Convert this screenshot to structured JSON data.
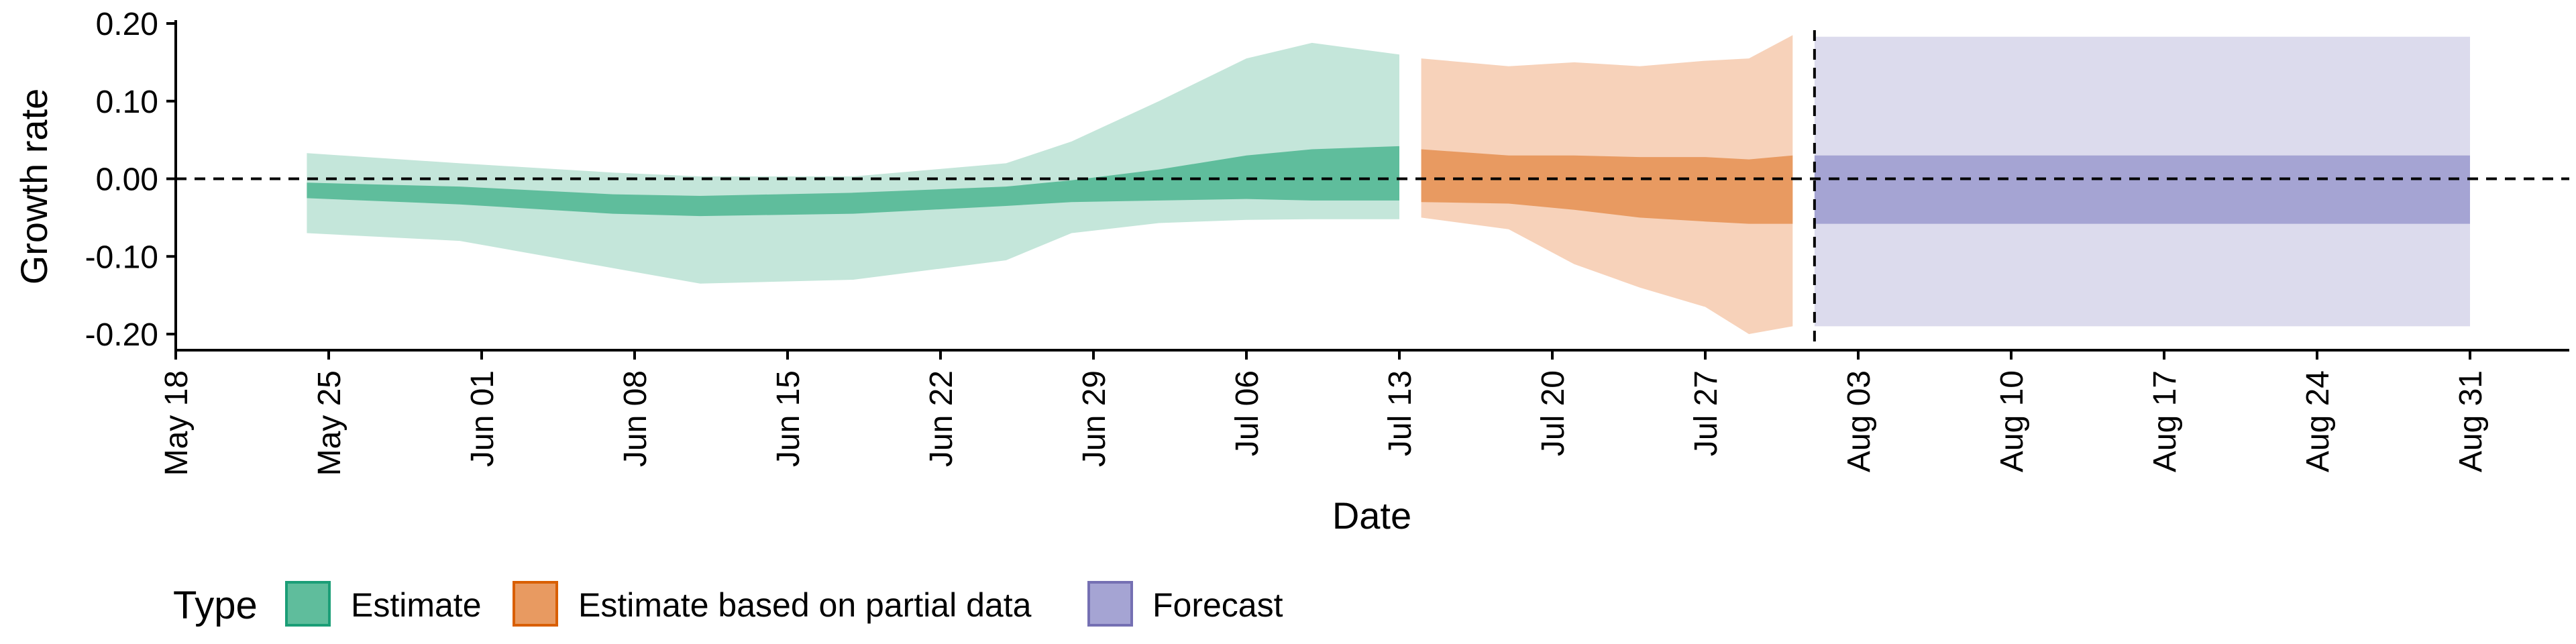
{
  "chart_data": {
    "type": "area",
    "xlabel": "Date",
    "ylabel": "Growth rate",
    "ylim": [
      -0.2,
      0.2
    ],
    "y_ticks": [
      0.2,
      0.1,
      0.0,
      -0.1,
      -0.2
    ],
    "y_tick_labels": [
      "0.20",
      "0.10",
      "0.00",
      "-0.10",
      "-0.20"
    ],
    "x_ticks": [
      "2020-05-18",
      "2020-05-25",
      "2020-06-01",
      "2020-06-08",
      "2020-06-15",
      "2020-06-22",
      "2020-06-29",
      "2020-07-06",
      "2020-07-13",
      "2020-07-20",
      "2020-07-27",
      "2020-08-03",
      "2020-08-10",
      "2020-08-17",
      "2020-08-24",
      "2020-08-31"
    ],
    "x_tick_labels": [
      "May 18",
      "May 25",
      "Jun 01",
      "Jun 08",
      "Jun 15",
      "Jun 22",
      "Jun 29",
      "Jul 06",
      "Jul 13",
      "Jul 20",
      "Jul 27",
      "Aug 03",
      "Aug 10",
      "Aug 17",
      "Aug 24",
      "Aug 31"
    ],
    "xlim": [
      "2020-05-18",
      "2020-09-01"
    ],
    "reference_lines": {
      "horizontal_y": 0.0,
      "vertical_date": "2020-08-01",
      "style": "dashed"
    },
    "legend": {
      "title": "Type",
      "position": "bottom-left",
      "items": [
        {
          "label": "Estimate",
          "color": "#66c2a5"
        },
        {
          "label": "Estimate based on partial data",
          "color": "#fc8d62"
        },
        {
          "label": "Forecast",
          "color": "#8da0cb"
        }
      ]
    },
    "series": [
      {
        "legend_label": "Estimate",
        "inner_color": "#5fbd9c",
        "outer_color": "#c4e6da",
        "points": [
          {
            "date": "2020-05-24",
            "lo90": -0.07,
            "lo50": -0.025,
            "hi50": -0.005,
            "hi90": 0.033
          },
          {
            "date": "2020-05-31",
            "lo90": -0.08,
            "lo50": -0.033,
            "hi50": -0.01,
            "hi90": 0.02
          },
          {
            "date": "2020-06-07",
            "lo90": -0.115,
            "lo50": -0.045,
            "hi50": -0.02,
            "hi90": 0.008
          },
          {
            "date": "2020-06-11",
            "lo90": -0.135,
            "lo50": -0.048,
            "hi50": -0.022,
            "hi90": 0.003
          },
          {
            "date": "2020-06-18",
            "lo90": -0.13,
            "lo50": -0.045,
            "hi50": -0.018,
            "hi90": 0.003
          },
          {
            "date": "2020-06-25",
            "lo90": -0.105,
            "lo50": -0.035,
            "hi50": -0.01,
            "hi90": 0.02
          },
          {
            "date": "2020-06-28",
            "lo90": -0.07,
            "lo50": -0.03,
            "hi50": -0.002,
            "hi90": 0.048
          },
          {
            "date": "2020-07-02",
            "lo90": -0.057,
            "lo50": -0.028,
            "hi50": 0.012,
            "hi90": 0.1
          },
          {
            "date": "2020-07-06",
            "lo90": -0.053,
            "lo50": -0.026,
            "hi50": 0.03,
            "hi90": 0.155
          },
          {
            "date": "2020-07-09",
            "lo90": -0.052,
            "lo50": -0.028,
            "hi50": 0.038,
            "hi90": 0.175
          },
          {
            "date": "2020-07-13",
            "lo90": -0.052,
            "lo50": -0.028,
            "hi50": 0.042,
            "hi90": 0.16
          }
        ]
      },
      {
        "legend_label": "Estimate based on partial data",
        "inner_color": "#e89a61",
        "outer_color": "#f7d2ba",
        "points": [
          {
            "date": "2020-07-14",
            "lo90": -0.05,
            "lo50": -0.03,
            "hi50": 0.038,
            "hi90": 0.155
          },
          {
            "date": "2020-07-18",
            "lo90": -0.065,
            "lo50": -0.032,
            "hi50": 0.03,
            "hi90": 0.145
          },
          {
            "date": "2020-07-21",
            "lo90": -0.11,
            "lo50": -0.04,
            "hi50": 0.03,
            "hi90": 0.15
          },
          {
            "date": "2020-07-24",
            "lo90": -0.14,
            "lo50": -0.05,
            "hi50": 0.028,
            "hi90": 0.145
          },
          {
            "date": "2020-07-27",
            "lo90": -0.165,
            "lo50": -0.055,
            "hi50": 0.028,
            "hi90": 0.152
          },
          {
            "date": "2020-07-29",
            "lo90": -0.2,
            "lo50": -0.058,
            "hi50": 0.025,
            "hi90": 0.155
          },
          {
            "date": "2020-07-31",
            "lo90": -0.19,
            "lo50": -0.058,
            "hi50": 0.03,
            "hi90": 0.185
          }
        ]
      },
      {
        "legend_label": "Forecast",
        "inner_color": "#a5a4d3",
        "outer_color": "#dcdbed",
        "points": [
          {
            "date": "2020-08-01",
            "lo90": -0.19,
            "lo50": -0.058,
            "hi50": 0.03,
            "hi90": 0.183
          },
          {
            "date": "2020-08-31",
            "lo90": -0.19,
            "lo50": -0.058,
            "hi50": 0.03,
            "hi90": 0.183
          }
        ]
      }
    ]
  }
}
